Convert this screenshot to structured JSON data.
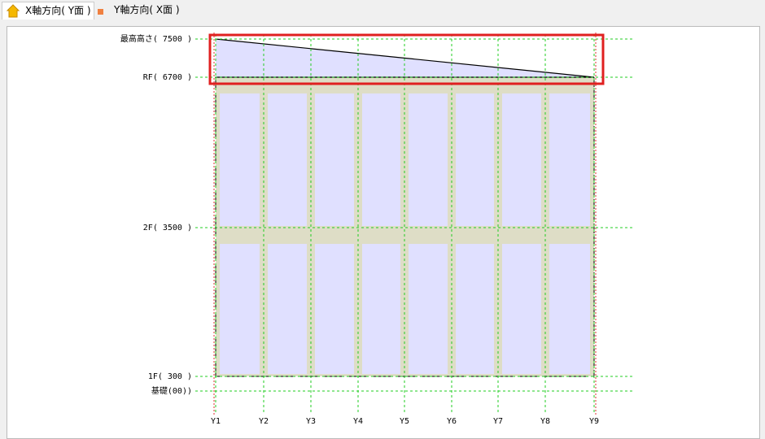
{
  "tabs": [
    "X軸方向( Y面 )",
    "Y軸方向( X面 )"
  ],
  "levels": [
    "最高高さ( 7500 )",
    "RF( 6700 )",
    "2F( 3500 )",
    "1F( 300 )",
    "基礎(00))"
  ],
  "axes": [
    "Y1",
    "Y2",
    "Y3",
    "Y4",
    "Y5",
    "Y6",
    "Y7",
    "Y8",
    "Y9"
  ]
}
